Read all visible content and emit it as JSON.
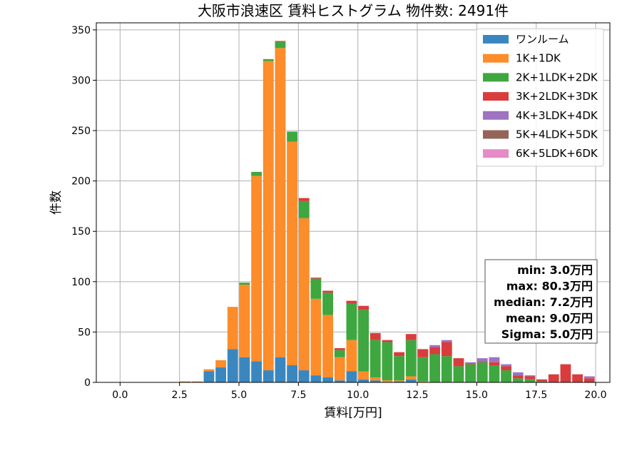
{
  "chart_data": {
    "type": "bar",
    "title": "大阪市浪速区 賃料ヒストグラム 物件数: 2491件",
    "xlabel": "賃料[万円]",
    "ylabel": "件数",
    "xlim": [
      -1.0,
      20.6
    ],
    "ylim": [
      0,
      357
    ],
    "xticks": [
      0.0,
      2.5,
      5.0,
      7.5,
      10.0,
      12.5,
      15.0,
      17.5,
      20.0
    ],
    "xtick_labels": [
      "0.0",
      "2.5",
      "5.0",
      "7.5",
      "10.0",
      "12.5",
      "15.0",
      "17.5",
      "20.0"
    ],
    "yticks": [
      0,
      50,
      100,
      150,
      200,
      250,
      300,
      350
    ],
    "ytick_labels": [
      "0",
      "50",
      "100",
      "150",
      "200",
      "250",
      "300",
      "350"
    ],
    "grid": true,
    "stacked": true,
    "bin_width": 0.5,
    "bin_starts": [
      2.5,
      3.0,
      3.5,
      4.0,
      4.5,
      5.0,
      5.5,
      6.0,
      6.5,
      7.0,
      7.5,
      8.0,
      8.5,
      9.0,
      9.5,
      10.0,
      10.5,
      11.0,
      11.5,
      12.0,
      12.5,
      13.0,
      13.5,
      14.0,
      14.5,
      15.0,
      15.5,
      16.0,
      16.5,
      17.0,
      17.5,
      18.0,
      18.5,
      19.0,
      19.5
    ],
    "legend_position": "upper-right",
    "series": [
      {
        "name": "ワンルーム",
        "color": "#3a87c0",
        "values": [
          0,
          0,
          11,
          15,
          33,
          25,
          21,
          12,
          25,
          17,
          12,
          7,
          5,
          2,
          11,
          3,
          2,
          0,
          1,
          3,
          0,
          0,
          0,
          0,
          0,
          0,
          0,
          0,
          0,
          0,
          0,
          0,
          0,
          0,
          0
        ]
      },
      {
        "name": "1K+1DK",
        "color": "#fd8c2a",
        "values": [
          1,
          1,
          2,
          7,
          42,
          72,
          184,
          307,
          307,
          222,
          151,
          76,
          62,
          23,
          31,
          8,
          3,
          2,
          1,
          3,
          1,
          0,
          0,
          0,
          0,
          0,
          0,
          0,
          0,
          0,
          0,
          0,
          0,
          0,
          0
        ]
      },
      {
        "name": "2K+1LDK+2DK",
        "color": "#3ea73f",
        "values": [
          0,
          0,
          0,
          0,
          0,
          2,
          4,
          2,
          6,
          10,
          17,
          20,
          22,
          7,
          36,
          61,
          37,
          38,
          24,
          36,
          24,
          28,
          26,
          16,
          18,
          20,
          17,
          12,
          4,
          3,
          1,
          0,
          0,
          0,
          0
        ]
      },
      {
        "name": "3K+2LDK+3DK",
        "color": "#d93c3c",
        "values": [
          0,
          0,
          0,
          0,
          0,
          0,
          0,
          0,
          1,
          0,
          3,
          1,
          2,
          2,
          3,
          4,
          7,
          2,
          4,
          6,
          8,
          7,
          14,
          8,
          1,
          1,
          3,
          4,
          3,
          3,
          2,
          8,
          18,
          8,
          4
        ]
      },
      {
        "name": "4K+3LDK+4DK",
        "color": "#9e73c2",
        "values": [
          0,
          0,
          0,
          0,
          0,
          0,
          0,
          0,
          0,
          0,
          0,
          0,
          0,
          0,
          0,
          0,
          0,
          0,
          0,
          0,
          0,
          2,
          2,
          0,
          1,
          3,
          5,
          2,
          3,
          1,
          0,
          0,
          0,
          0,
          2
        ]
      },
      {
        "name": "5K+4LDK+5DK",
        "color": "#956458",
        "values": [
          0,
          0,
          0,
          0,
          0,
          0,
          0,
          0,
          0,
          0,
          0,
          0,
          0,
          0,
          0,
          0,
          0,
          0,
          0,
          0,
          0,
          0,
          0,
          0,
          0,
          0,
          0,
          0,
          0,
          0,
          0,
          0,
          0,
          0,
          0
        ]
      },
      {
        "name": "6K+5LDK+6DK",
        "color": "#e58bc8",
        "values": [
          0,
          0,
          0,
          0,
          0,
          0,
          0,
          0,
          0,
          0,
          0,
          0,
          0,
          0,
          0,
          0,
          0,
          0,
          0,
          0,
          0,
          0,
          0,
          0,
          0,
          0,
          0,
          0,
          0,
          0,
          0,
          0,
          0,
          0,
          0
        ]
      }
    ],
    "stats": [
      "min: 3.0万円",
      "max: 80.3万円",
      "median: 7.2万円",
      "mean: 9.0万円",
      "Sigma: 5.0万円"
    ]
  }
}
